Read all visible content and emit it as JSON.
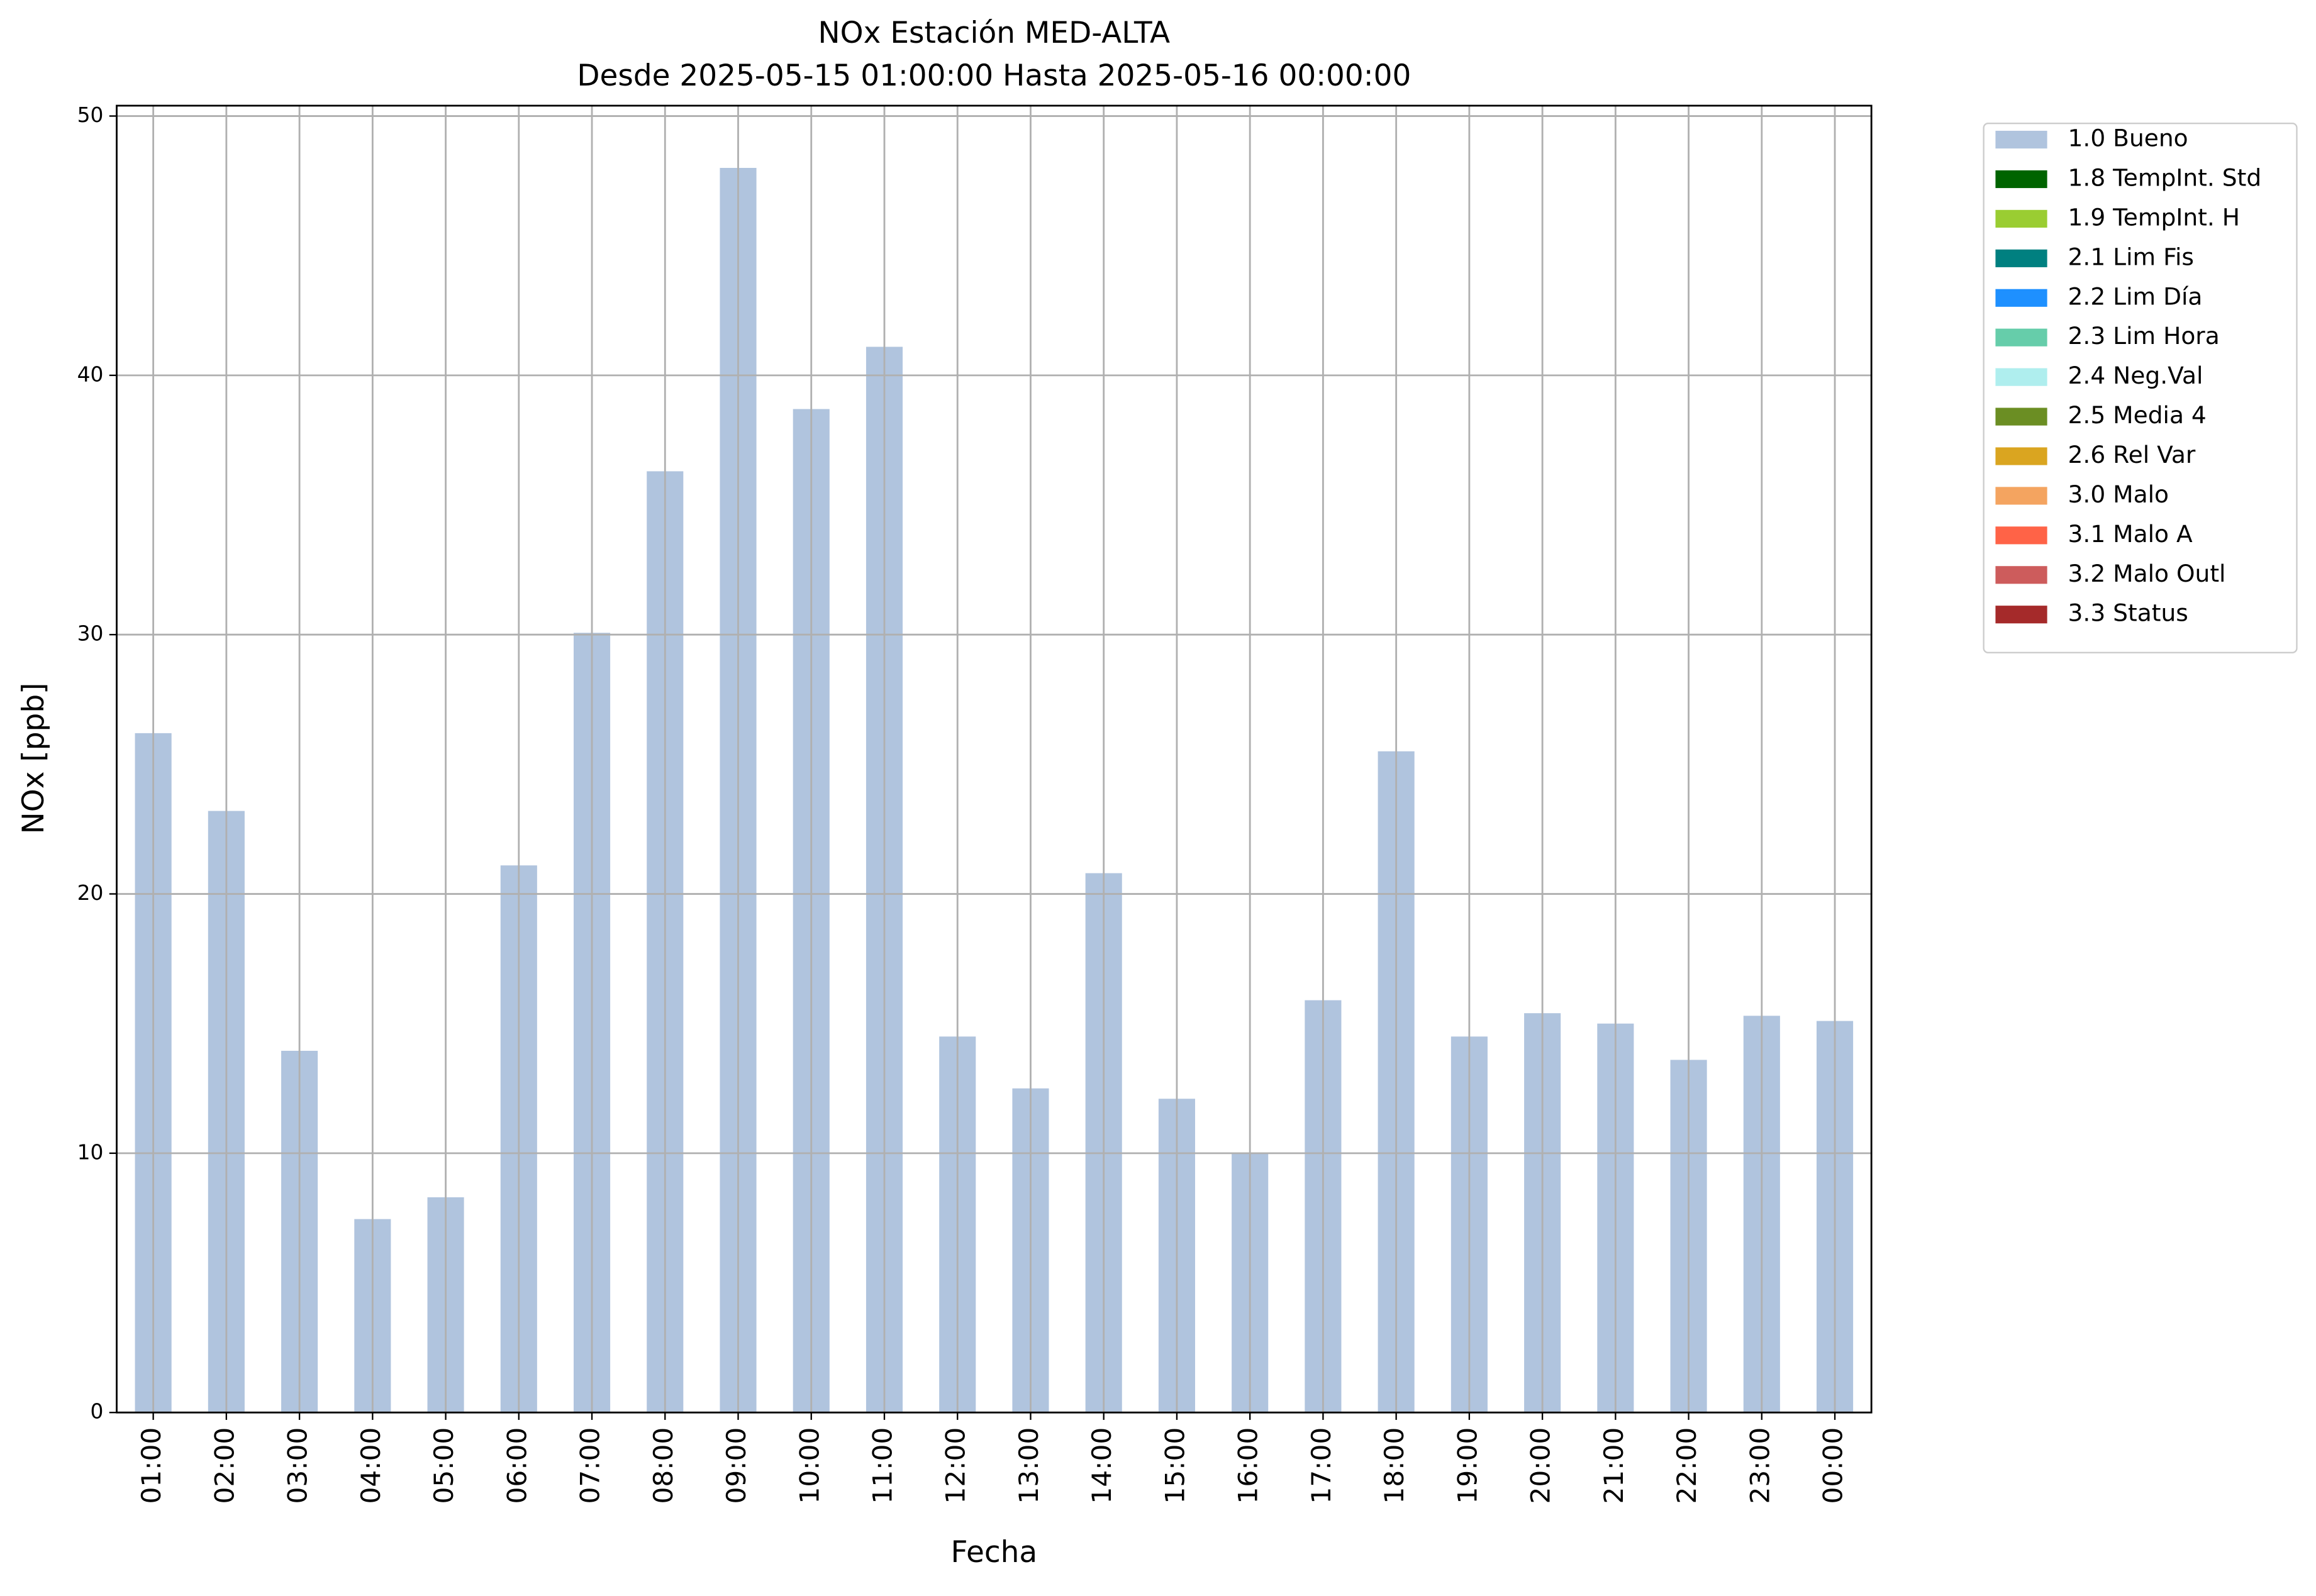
{
  "chart_data": {
    "type": "stacked_bar",
    "title": "NOx Estación MED-ALTA",
    "subtitle": "Desde 2025-05-15 01:00:00 Hasta 2025-05-16 00:00:00",
    "x_label": "Fecha",
    "y_label": "NOx [ppb]",
    "categories": [
      "01:00",
      "02:00",
      "03:00",
      "04:00",
      "05:00",
      "06:00",
      "07:00",
      "08:00",
      "09:00",
      "10:00",
      "11:00",
      "12:00",
      "13:00",
      "14:00",
      "15:00",
      "16:00",
      "17:00",
      "18:00",
      "19:00",
      "20:00",
      "21:00",
      "22:00",
      "23:00",
      "00:00"
    ],
    "series": [
      {
        "name": "1.0 Bueno",
        "color": "#b0c4de",
        "values": [
          26.2,
          23.2,
          13.95,
          7.46,
          8.3,
          21.1,
          30.07,
          36.3,
          48.0,
          38.7,
          41.1,
          14.5,
          12.5,
          20.8,
          12.1,
          10.0,
          15.9,
          25.5,
          14.5,
          15.4,
          15.0,
          13.6,
          15.3,
          15.1
        ]
      },
      {
        "name": "1.8 TempInt. Std",
        "color": "#006400",
        "values": [
          null,
          null,
          null,
          null,
          null,
          null,
          null,
          null,
          null,
          null,
          null,
          null,
          null,
          null,
          null,
          null,
          null,
          null,
          null,
          null,
          null,
          null,
          null,
          null
        ]
      },
      {
        "name": "1.9 TempInt. H",
        "color": "#9acd32",
        "values": [
          null,
          null,
          null,
          null,
          null,
          null,
          null,
          null,
          null,
          null,
          null,
          null,
          null,
          null,
          null,
          null,
          null,
          null,
          null,
          null,
          null,
          null,
          null,
          null
        ]
      },
      {
        "name": "2.1 Lim Fis",
        "color": "#008080",
        "values": [
          null,
          null,
          null,
          null,
          null,
          null,
          null,
          null,
          null,
          null,
          null,
          null,
          null,
          null,
          null,
          null,
          null,
          null,
          null,
          null,
          null,
          null,
          null,
          null
        ]
      },
      {
        "name": "2.2 Lim Día",
        "color": "#1e90ff",
        "values": [
          null,
          null,
          null,
          null,
          null,
          null,
          null,
          null,
          null,
          null,
          null,
          null,
          null,
          null,
          null,
          null,
          null,
          null,
          null,
          null,
          null,
          null,
          null,
          null
        ]
      },
      {
        "name": "2.3 Lim Hora",
        "color": "#66cdaa",
        "values": [
          null,
          null,
          null,
          null,
          null,
          null,
          null,
          null,
          null,
          null,
          null,
          null,
          null,
          null,
          null,
          null,
          null,
          null,
          null,
          null,
          null,
          null,
          null,
          null
        ]
      },
      {
        "name": "2.4 Neg.Val",
        "color": "#afeeee",
        "values": [
          null,
          null,
          null,
          null,
          null,
          null,
          null,
          null,
          null,
          null,
          null,
          null,
          null,
          null,
          null,
          null,
          null,
          null,
          null,
          null,
          null,
          null,
          null,
          null
        ]
      },
      {
        "name": "2.5 Media 4",
        "color": "#6b8e23",
        "values": [
          null,
          null,
          null,
          null,
          null,
          null,
          null,
          null,
          null,
          null,
          null,
          null,
          null,
          null,
          null,
          null,
          null,
          null,
          null,
          null,
          null,
          null,
          null,
          null
        ]
      },
      {
        "name": "2.6 Rel Var",
        "color": "#daa520",
        "values": [
          null,
          null,
          null,
          null,
          null,
          null,
          null,
          null,
          null,
          null,
          null,
          null,
          null,
          null,
          null,
          null,
          null,
          null,
          null,
          null,
          null,
          null,
          null,
          null
        ]
      },
      {
        "name": "3.0 Malo",
        "color": "#f4a460",
        "values": [
          null,
          null,
          null,
          null,
          null,
          null,
          null,
          null,
          null,
          null,
          null,
          null,
          null,
          null,
          null,
          null,
          null,
          null,
          null,
          null,
          null,
          null,
          null,
          null
        ]
      },
      {
        "name": "3.1 Malo A",
        "color": "#ff6347",
        "values": [
          null,
          null,
          null,
          null,
          null,
          null,
          null,
          null,
          null,
          null,
          null,
          null,
          null,
          null,
          null,
          null,
          null,
          null,
          null,
          null,
          null,
          null,
          null,
          null
        ]
      },
      {
        "name": "3.2 Malo Outl",
        "color": "#cd5c5c",
        "values": [
          null,
          null,
          null,
          null,
          null,
          null,
          null,
          null,
          null,
          null,
          null,
          null,
          null,
          null,
          null,
          null,
          null,
          null,
          null,
          null,
          null,
          null,
          null,
          null
        ]
      },
      {
        "name": "3.3 Status",
        "color": "#a52a2a",
        "values": [
          null,
          null,
          null,
          null,
          null,
          null,
          null,
          null,
          null,
          null,
          null,
          null,
          null,
          null,
          null,
          null,
          null,
          null,
          null,
          null,
          null,
          null,
          null,
          null
        ]
      }
    ],
    "ylim": [
      0,
      50.4
    ],
    "yticks": [
      0,
      10,
      20,
      30,
      40,
      50
    ],
    "grid": true,
    "legend": "outside"
  }
}
